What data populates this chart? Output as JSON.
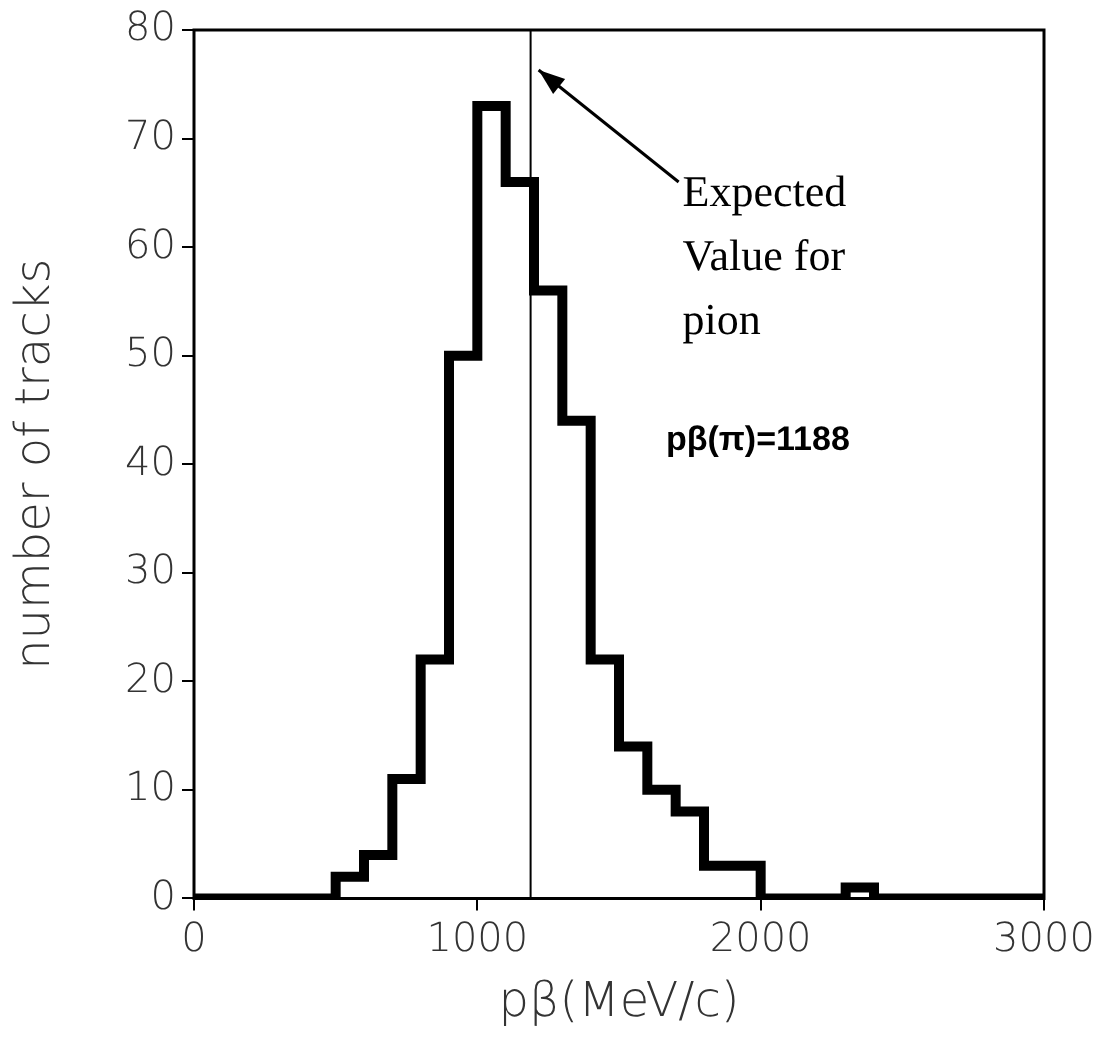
{
  "chart_data": {
    "type": "histogram",
    "xlabel": "pβ(MeV/c)",
    "ylabel": "number of tracks",
    "bins": [
      0,
      100,
      200,
      300,
      400,
      500,
      600,
      700,
      800,
      900,
      1000,
      1100,
      1200,
      1300,
      1400,
      1500,
      1600,
      1700,
      1800,
      1900,
      2000,
      2100,
      2200,
      2300,
      2400,
      2500,
      2600,
      2700,
      2800,
      2900,
      3000
    ],
    "values": [
      0,
      0,
      0,
      0,
      0,
      2,
      4,
      11,
      22,
      50,
      73,
      66,
      56,
      44,
      22,
      14,
      10,
      8,
      3,
      3,
      0,
      0,
      0,
      1,
      0,
      0,
      0,
      0,
      0,
      0
    ],
    "color": "#000000",
    "xlim": [
      0,
      3000
    ],
    "xticks": [
      0,
      1000,
      2000,
      3000
    ],
    "ylim": [
      0,
      80
    ],
    "yticks": [
      0,
      10,
      20,
      30,
      40,
      50,
      60,
      70,
      80
    ],
    "grid": false,
    "legend": false,
    "ref_lines": [
      {
        "axis": "x",
        "value": 1188,
        "label": "Expected Value for pion",
        "color": "#000000"
      }
    ],
    "annotations": [
      "pβ(π)=1188"
    ]
  }
}
